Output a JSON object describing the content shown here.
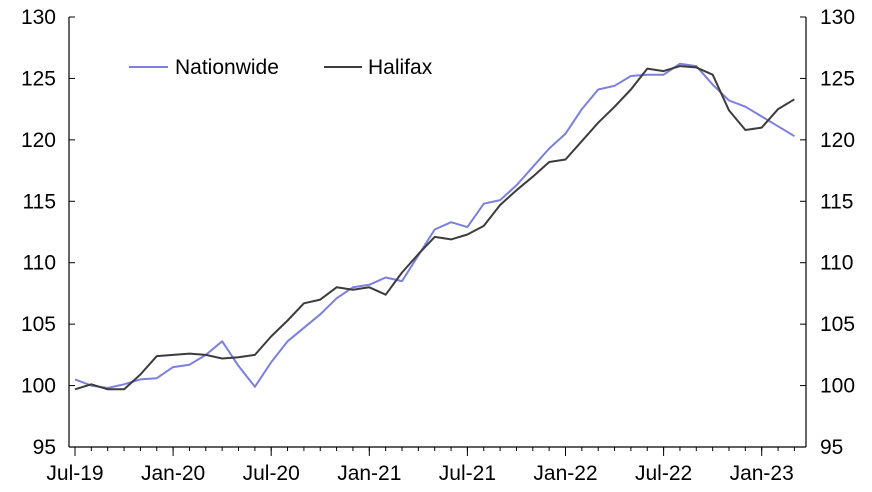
{
  "chart_data": {
    "type": "line",
    "title": "",
    "xlabel": "",
    "ylabel": "",
    "ylim": [
      95,
      130
    ],
    "yticks": [
      95,
      100,
      105,
      110,
      115,
      120,
      125,
      130
    ],
    "y_tick_labels": [
      "95",
      "100",
      "105",
      "110",
      "115",
      "120",
      "125",
      "130"
    ],
    "x_tick_labels": [
      "Jul-19",
      "Jan-20",
      "Jul-20",
      "Jan-21",
      "Jul-21",
      "Jan-22",
      "Jul-22",
      "Jan-23"
    ],
    "x": [
      "2019-07",
      "2019-08",
      "2019-09",
      "2019-10",
      "2019-11",
      "2019-12",
      "2020-01",
      "2020-02",
      "2020-03",
      "2020-04",
      "2020-05",
      "2020-06",
      "2020-07",
      "2020-08",
      "2020-09",
      "2020-10",
      "2020-11",
      "2020-12",
      "2021-01",
      "2021-02",
      "2021-03",
      "2021-04",
      "2021-05",
      "2021-06",
      "2021-07",
      "2021-08",
      "2021-09",
      "2021-10",
      "2021-11",
      "2021-12",
      "2022-01",
      "2022-02",
      "2022-03",
      "2022-04",
      "2022-05",
      "2022-06",
      "2022-07",
      "2022-08",
      "2022-09",
      "2022-10",
      "2022-11",
      "2022-12",
      "2023-01",
      "2023-02",
      "2023-03"
    ],
    "legend_position": "top-left",
    "series": [
      {
        "name": "Nationwide",
        "color": "#7b7fe0",
        "values": [
          100.5,
          100.0,
          99.8,
          100.1,
          100.5,
          100.6,
          101.5,
          101.7,
          102.5,
          103.6,
          101.6,
          99.9,
          101.9,
          103.6,
          104.7,
          105.8,
          107.1,
          108.0,
          108.2,
          108.8,
          108.5,
          110.6,
          112.7,
          113.3,
          112.9,
          114.8,
          115.1,
          116.3,
          117.8,
          119.3,
          120.5,
          122.5,
          124.1,
          124.4,
          125.2,
          125.3,
          125.3,
          126.2,
          126.0,
          124.5,
          123.2,
          122.7,
          121.9,
          121.1,
          120.3
        ]
      },
      {
        "name": "Halifax",
        "color": "#3c3c3c",
        "values": [
          99.7,
          100.1,
          99.7,
          99.7,
          100.9,
          102.4,
          102.5,
          102.6,
          102.5,
          102.2,
          102.3,
          102.5,
          104.0,
          105.3,
          106.7,
          107.0,
          108.0,
          107.8,
          108.0,
          107.4,
          109.2,
          110.7,
          112.1,
          111.9,
          112.3,
          113.0,
          114.7,
          115.9,
          117.0,
          118.2,
          118.4,
          119.9,
          121.4,
          122.7,
          124.1,
          125.8,
          125.6,
          126.0,
          125.9,
          125.3,
          122.4,
          120.8,
          121.0,
          122.5,
          123.3
        ]
      }
    ]
  }
}
